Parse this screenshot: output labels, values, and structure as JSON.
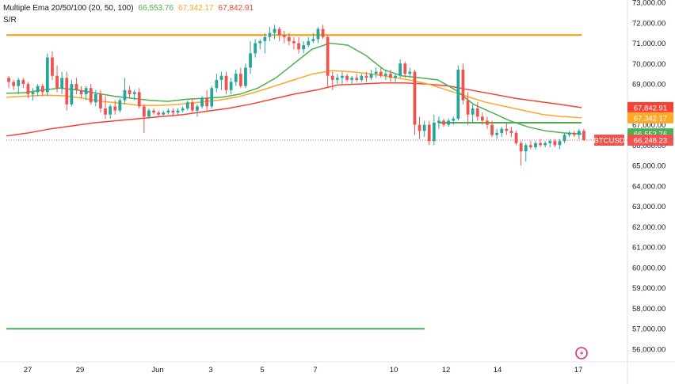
{
  "legend": {
    "indicator": "Multiple Ema 20/50/100 (20, 50, 100)",
    "ema20": "66,553.76",
    "ema50": "67,342.17",
    "ema100": "67,842.91",
    "sr": "S/R"
  },
  "price_tags": {
    "ema100": "67,842.91",
    "ema50": "67,342.17",
    "ema20": "66,553.76",
    "symbol": "BTCUSD",
    "last": "66,248.23"
  },
  "colors": {
    "up": "#26a69a",
    "down": "#ef5350",
    "ema20": "#4caf50",
    "ema50": "#ffa726",
    "ema100": "#f44336",
    "resistance": "#ff9800",
    "support": "#4caf50",
    "logo": "#e0297b"
  },
  "chart_data": {
    "type": "candlestick",
    "symbol": "BTCUSD",
    "y_ticks": [
      "73,000.00",
      "72,000.00",
      "71,000.00",
      "70,000.00",
      "69,000.00",
      "68,000.00",
      "67,000.00",
      "66,000.00",
      "65,000.00",
      "64,000.00",
      "63,000.00",
      "62,000.00",
      "61,000.00",
      "60,000.00",
      "59,000.00",
      "58,000.00",
      "57,000.00",
      "56,000.00"
    ],
    "ylim": [
      55500,
      73100
    ],
    "x_ticks": [
      "27",
      "29",
      "Jun",
      "3",
      "5",
      "7",
      "10",
      "12",
      "14",
      "17"
    ],
    "candles": [
      [
        69300,
        69400,
        68800,
        69100
      ],
      [
        69100,
        69200,
        68700,
        68900
      ],
      [
        68900,
        69300,
        68500,
        69200
      ],
      [
        69200,
        69300,
        68800,
        69000
      ],
      [
        69000,
        69100,
        68300,
        68500
      ],
      [
        68500,
        68800,
        68200,
        68600
      ],
      [
        68600,
        69000,
        68400,
        68900
      ],
      [
        68900,
        69000,
        68400,
        68600
      ],
      [
        68600,
        70500,
        68400,
        70300
      ],
      [
        70300,
        70600,
        69200,
        69400
      ],
      [
        69400,
        69900,
        68600,
        68800
      ],
      [
        68800,
        69600,
        68500,
        69300
      ],
      [
        69300,
        69600,
        67700,
        68000
      ],
      [
        68000,
        69200,
        67900,
        69000
      ],
      [
        69000,
        69300,
        68500,
        68700
      ],
      [
        68700,
        68900,
        68300,
        68500
      ],
      [
        68500,
        68900,
        68200,
        68800
      ],
      [
        68800,
        69000,
        68000,
        68100
      ],
      [
        68100,
        68700,
        67900,
        68500
      ],
      [
        68500,
        68700,
        67600,
        67800
      ],
      [
        67800,
        68400,
        67300,
        67500
      ],
      [
        67500,
        68000,
        67300,
        67900
      ],
      [
        67900,
        68200,
        67500,
        67700
      ],
      [
        67700,
        68300,
        67600,
        68200
      ],
      [
        68200,
        69300,
        68000,
        68700
      ],
      [
        68700,
        68900,
        68300,
        68500
      ],
      [
        68500,
        68700,
        68200,
        68600
      ],
      [
        68600,
        68800,
        67800,
        67900
      ],
      [
        67900,
        68000,
        66600,
        67400
      ],
      [
        67400,
        67800,
        67300,
        67700
      ],
      [
        67700,
        67800,
        67500,
        67600
      ],
      [
        67600,
        67700,
        67400,
        67500
      ],
      [
        67500,
        67700,
        67400,
        67600
      ],
      [
        67600,
        67800,
        67500,
        67700
      ],
      [
        67700,
        67800,
        67400,
        67600
      ],
      [
        67600,
        67800,
        67500,
        67700
      ],
      [
        67700,
        67900,
        67600,
        67800
      ],
      [
        67800,
        68200,
        67700,
        68100
      ],
      [
        68100,
        68300,
        67600,
        67700
      ],
      [
        67700,
        68000,
        67400,
        67900
      ],
      [
        67900,
        68400,
        67800,
        68300
      ],
      [
        68300,
        68700,
        67700,
        67900
      ],
      [
        67900,
        68900,
        67800,
        68800
      ],
      [
        68800,
        69500,
        68600,
        69200
      ],
      [
        69200,
        69600,
        68700,
        69400
      ],
      [
        69400,
        69600,
        68500,
        68700
      ],
      [
        68700,
        69300,
        68500,
        69100
      ],
      [
        69100,
        69700,
        68900,
        69500
      ],
      [
        69500,
        69800,
        68800,
        68900
      ],
      [
        68900,
        70000,
        68800,
        69800
      ],
      [
        69800,
        71100,
        69500,
        70500
      ],
      [
        70500,
        71200,
        70300,
        71000
      ],
      [
        71000,
        71200,
        70700,
        71100
      ],
      [
        71100,
        71500,
        70500,
        71300
      ],
      [
        71300,
        71800,
        71100,
        71500
      ],
      [
        71500,
        71900,
        71200,
        71700
      ],
      [
        71700,
        71800,
        71100,
        71400
      ],
      [
        71400,
        71600,
        71000,
        71300
      ],
      [
        71300,
        71500,
        70900,
        71100
      ],
      [
        71100,
        71300,
        70700,
        71000
      ],
      [
        71000,
        71300,
        70500,
        70700
      ],
      [
        70700,
        71100,
        70500,
        70900
      ],
      [
        70900,
        71300,
        70800,
        71100
      ],
      [
        71100,
        71500,
        71000,
        71200
      ],
      [
        71200,
        71800,
        71000,
        71700
      ],
      [
        71700,
        71900,
        71200,
        71300
      ],
      [
        71300,
        71400,
        68800,
        69400
      ],
      [
        69400,
        69600,
        68700,
        69200
      ],
      [
        69200,
        69500,
        69000,
        69300
      ],
      [
        69300,
        69600,
        69000,
        69400
      ],
      [
        69400,
        69500,
        69100,
        69200
      ],
      [
        69200,
        69400,
        69000,
        69300
      ],
      [
        69300,
        69500,
        69100,
        69200
      ],
      [
        69200,
        69500,
        69100,
        69400
      ],
      [
        69400,
        69600,
        69100,
        69300
      ],
      [
        69300,
        69700,
        69200,
        69500
      ],
      [
        69500,
        69800,
        69300,
        69600
      ],
      [
        69600,
        69800,
        69300,
        69400
      ],
      [
        69400,
        69700,
        69200,
        69500
      ],
      [
        69500,
        69700,
        69100,
        69300
      ],
      [
        69300,
        69500,
        69100,
        69400
      ],
      [
        69400,
        70200,
        69300,
        70000
      ],
      [
        70000,
        70100,
        69300,
        69500
      ],
      [
        69500,
        69800,
        69300,
        69600
      ],
      [
        69600,
        69700,
        66500,
        67000
      ],
      [
        67000,
        67400,
        66300,
        66700
      ],
      [
        66700,
        67200,
        66400,
        67000
      ],
      [
        67000,
        67200,
        66000,
        66200
      ],
      [
        66200,
        67500,
        66000,
        67100
      ],
      [
        67100,
        67400,
        66800,
        67200
      ],
      [
        67200,
        67300,
        66900,
        67000
      ],
      [
        67000,
        67300,
        66900,
        67200
      ],
      [
        67200,
        67400,
        67000,
        67300
      ],
      [
        67300,
        69900,
        67200,
        69700
      ],
      [
        69700,
        70000,
        68000,
        68200
      ],
      [
        68200,
        68600,
        67000,
        67500
      ],
      [
        67500,
        68000,
        67100,
        67800
      ],
      [
        67800,
        68100,
        67200,
        67400
      ],
      [
        67400,
        67600,
        67000,
        67200
      ],
      [
        67200,
        67400,
        66800,
        67000
      ],
      [
        67000,
        67200,
        66400,
        66500
      ],
      [
        66500,
        66800,
        66300,
        66600
      ],
      [
        66600,
        66900,
        66400,
        66800
      ],
      [
        66800,
        67100,
        66500,
        66700
      ],
      [
        66700,
        66900,
        66400,
        66600
      ],
      [
        66600,
        66700,
        66000,
        66100
      ],
      [
        66100,
        66200,
        65000,
        65700
      ],
      [
        65700,
        66100,
        65200,
        66000
      ],
      [
        66000,
        66200,
        65800,
        65900
      ],
      [
        65900,
        66200,
        65800,
        66100
      ],
      [
        66100,
        66300,
        65900,
        66000
      ],
      [
        66000,
        66200,
        65900,
        66100
      ],
      [
        66100,
        66300,
        65900,
        66200
      ],
      [
        66200,
        66300,
        65900,
        66000
      ],
      [
        66000,
        66300,
        65800,
        66200
      ],
      [
        66200,
        66600,
        66100,
        66500
      ],
      [
        66500,
        66700,
        66400,
        66600
      ],
      [
        66600,
        66700,
        66400,
        66500
      ],
      [
        66500,
        66800,
        66300,
        66700
      ],
      [
        66700,
        66800,
        66200,
        66248.23
      ]
    ],
    "ema20": [
      [
        68550,
        68570,
        68700,
        68800,
        68700,
        68550,
        68400,
        68300,
        68200,
        68150,
        68250,
        68300,
        68350,
        68500,
        68800,
        69300,
        70000,
        70700,
        71000,
        70900,
        70400,
        69700,
        69400,
        69300,
        69200,
        68700,
        68000,
        67600,
        67200,
        66900,
        66700,
        66600,
        66553.76
      ]
    ],
    "ema50": [
      [
        68350,
        68400,
        68450,
        68420,
        68300,
        68150,
        68050,
        67950,
        67950,
        68000,
        68100,
        68200,
        68350,
        68600,
        68900,
        69200,
        69500,
        69650,
        69600,
        69500,
        69350,
        69200,
        69000,
        68700,
        68400,
        68100,
        67900,
        67700,
        67500,
        67400,
        67342.17
      ]
    ],
    "ema100": [
      [
        66450,
        66600,
        66800,
        66950,
        67100,
        67200,
        67300,
        67400,
        67500,
        67650,
        67800,
        68000,
        68250,
        68500,
        68700,
        68950,
        69000,
        69050,
        69050,
        69000,
        68900,
        68700,
        68500,
        68300,
        68150,
        68000,
        67842.91
      ]
    ],
    "resistance": 71400,
    "ema20_hline": 67100,
    "support": 57000
  }
}
